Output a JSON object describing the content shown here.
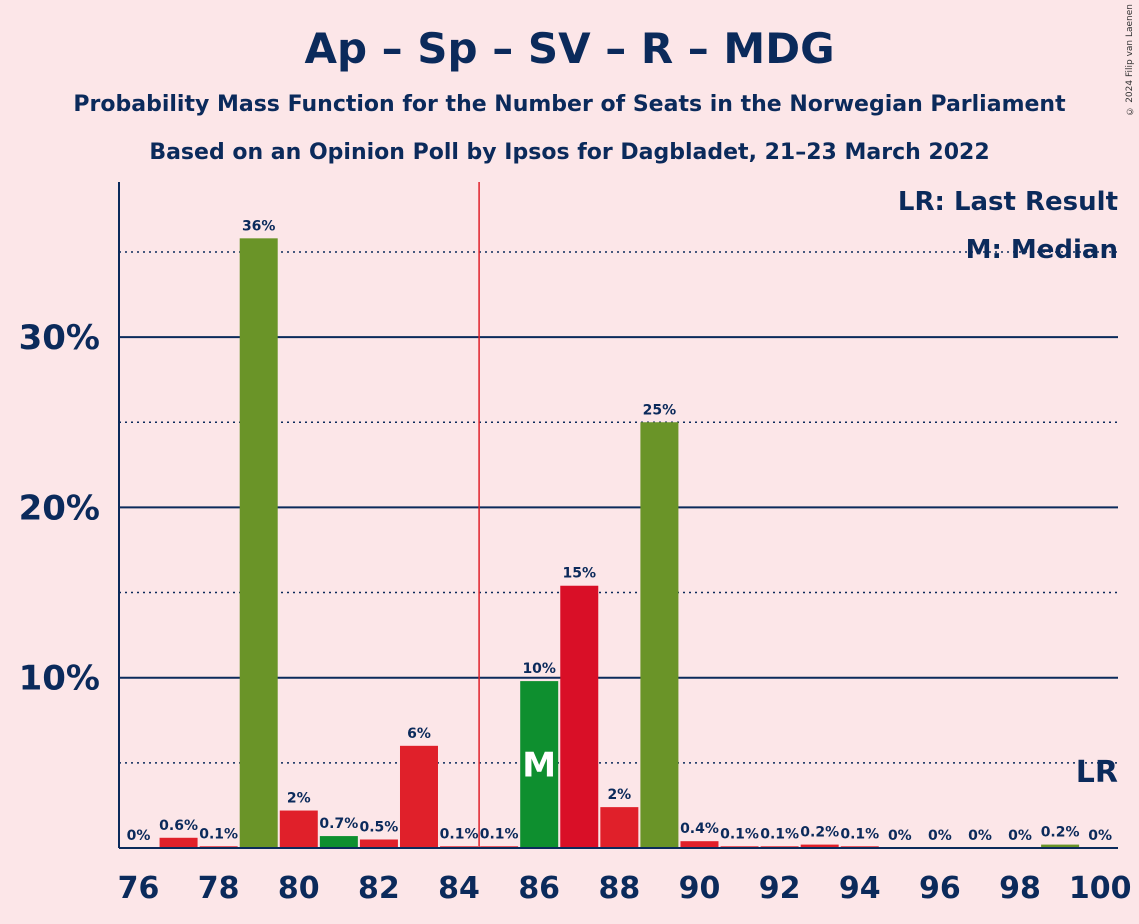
{
  "title": "Ap – Sp – SV – R – MDG",
  "subtitle1": "Probability Mass Function for the Number of Seats in the Norwegian Parliament",
  "subtitle2": "Based on an Opinion Poll by Ipsos for Dagbladet, 21–23 March 2022",
  "copyright": "© 2024 Filip van Laenen",
  "legend": {
    "lr": "LR: Last Result",
    "median": "M: Median"
  },
  "markers": {
    "median_label": "M",
    "last_result_label": "LR"
  },
  "colors": {
    "green_dark": "#6a9428",
    "green": "#0e8f2f",
    "red": "#e0202a",
    "red_dark": "#d90f27",
    "axis": "#0b2a5b",
    "majority_line": "#e0202a"
  },
  "chart_data": {
    "type": "bar",
    "x": [
      76,
      77,
      78,
      79,
      80,
      81,
      82,
      83,
      84,
      85,
      86,
      87,
      88,
      89,
      90,
      91,
      92,
      93,
      94,
      95,
      96,
      97,
      98,
      99,
      100
    ],
    "values": [
      0,
      0.6,
      0.1,
      35.8,
      2.2,
      0.7,
      0.5,
      6.0,
      0.1,
      0.1,
      9.8,
      15.4,
      2.4,
      25.0,
      0.4,
      0.1,
      0.1,
      0.2,
      0.1,
      0,
      0,
      0,
      0,
      0.2,
      0
    ],
    "labels": [
      "0%",
      "0.6%",
      "0.1%",
      "36%",
      "2%",
      "0.7%",
      "0.5%",
      "6%",
      "0.1%",
      "0.1%",
      "10%",
      "15%",
      "2%",
      "25%",
      "0.4%",
      "0.1%",
      "0.1%",
      "0.2%",
      "0.1%",
      "0%",
      "0%",
      "0%",
      "0%",
      "0.2%",
      "0%"
    ],
    "bar_colors": [
      "#e0202a",
      "#e0202a",
      "#e0202a",
      "#6a9428",
      "#e0202a",
      "#0e8f2f",
      "#e0202a",
      "#e0202a",
      "#e0202a",
      "#e0202a",
      "#0e8f2f",
      "#d90f27",
      "#e0202a",
      "#6a9428",
      "#e0202a",
      "#e0202a",
      "#e0202a",
      "#e0202a",
      "#e0202a",
      "#e0202a",
      "#e0202a",
      "#e0202a",
      "#e0202a",
      "#6a9428",
      "#e0202a"
    ],
    "xticks": [
      76,
      78,
      80,
      82,
      84,
      86,
      88,
      90,
      92,
      94,
      96,
      98,
      100
    ],
    "yticks": [
      "10%",
      "20%",
      "30%"
    ],
    "ytick_values": [
      10,
      20,
      30
    ],
    "dotted_gridlines": [
      5,
      15,
      25,
      35
    ],
    "ylim": [
      0,
      39
    ],
    "median_seat": 86,
    "last_result_seat": 100,
    "majority_seat": 85
  }
}
